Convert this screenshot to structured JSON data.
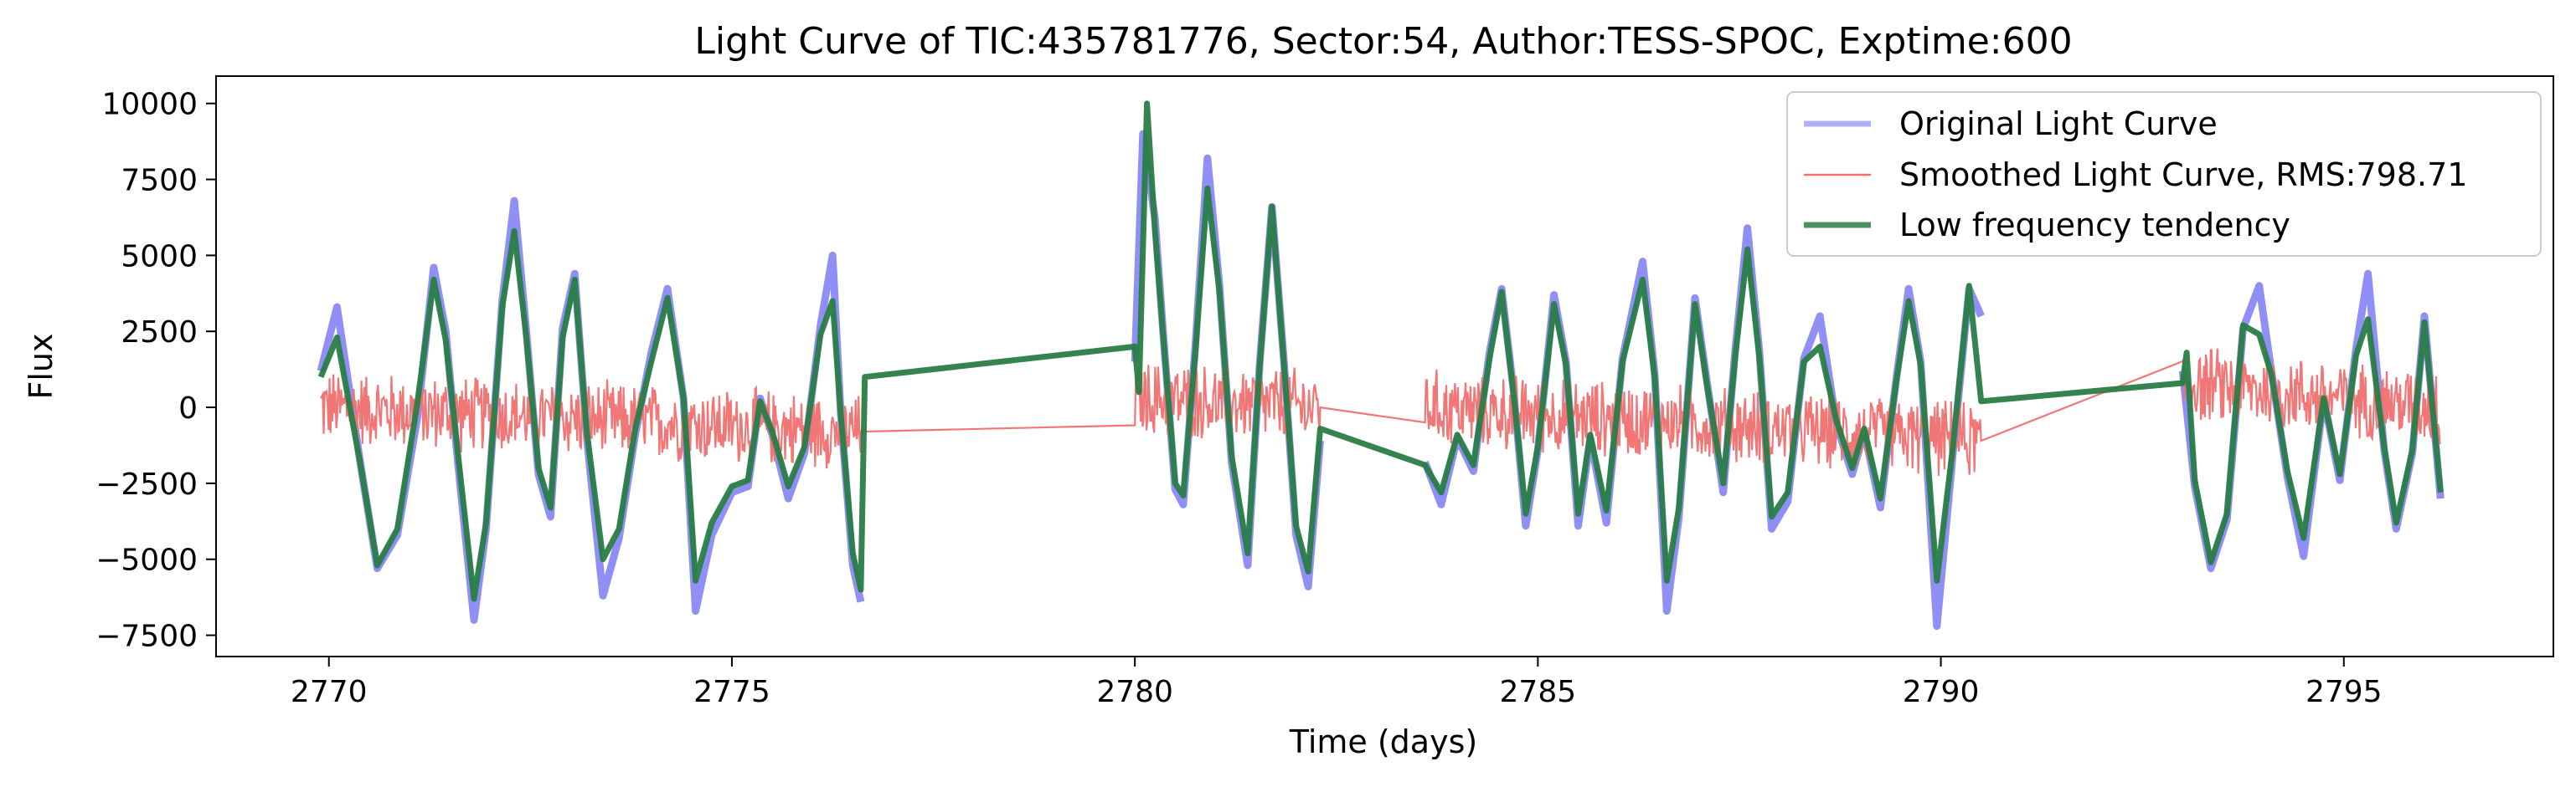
{
  "chart_data": {
    "type": "line",
    "title": "Light Curve of TIC:435781776, Sector:54, Author:TESS-SPOC, Exptime:600",
    "xlabel": "Time (days)",
    "ylabel": "Flux",
    "xlim": [
      2768.6,
      2797.6
    ],
    "ylim": [
      -8200,
      10900
    ],
    "xticks": [
      2770,
      2775,
      2780,
      2785,
      2790,
      2795
    ],
    "xtick_labels": [
      "2770",
      "2775",
      "2780",
      "2785",
      "2790",
      "2795"
    ],
    "yticks": [
      -7500,
      -5000,
      -2500,
      0,
      2500,
      5000,
      7500,
      10000
    ],
    "ytick_labels": [
      "−7500",
      "−5000",
      "−2500",
      "0",
      "2500",
      "5000",
      "7500",
      "10000"
    ],
    "grid": false,
    "legend_position": "top-right",
    "segments": [
      [
        2769.9,
        2776.6
      ],
      [
        2780.0,
        2782.3
      ],
      [
        2783.6,
        2790.5
      ],
      [
        2793.0,
        2796.2
      ]
    ],
    "series": [
      {
        "name": "Original Light Curve",
        "color": "#7b7bf5",
        "style": "thick translucent line",
        "points": [
          [
            2769.9,
            1200
          ],
          [
            2770.1,
            3300
          ],
          [
            2770.4,
            -2000
          ],
          [
            2770.6,
            -5300
          ],
          [
            2770.85,
            -4200
          ],
          [
            2771.1,
            -300
          ],
          [
            2771.3,
            4600
          ],
          [
            2771.45,
            2500
          ],
          [
            2771.6,
            -1800
          ],
          [
            2771.8,
            -7000
          ],
          [
            2771.95,
            -4000
          ],
          [
            2772.15,
            3500
          ],
          [
            2772.3,
            6800
          ],
          [
            2772.45,
            2500
          ],
          [
            2772.6,
            -2200
          ],
          [
            2772.75,
            -3600
          ],
          [
            2772.9,
            2600
          ],
          [
            2773.05,
            4400
          ],
          [
            2773.2,
            -1000
          ],
          [
            2773.4,
            -6200
          ],
          [
            2773.6,
            -4300
          ],
          [
            2773.8,
            -900
          ],
          [
            2774.0,
            1800
          ],
          [
            2774.2,
            3900
          ],
          [
            2774.4,
            300
          ],
          [
            2774.55,
            -6700
          ],
          [
            2774.75,
            -4200
          ],
          [
            2775.0,
            -2800
          ],
          [
            2775.2,
            -2600
          ],
          [
            2775.35,
            300
          ],
          [
            2775.5,
            -900
          ],
          [
            2775.7,
            -3000
          ],
          [
            2775.9,
            -1500
          ],
          [
            2776.1,
            2700
          ],
          [
            2776.25,
            5000
          ],
          [
            2776.35,
            -200
          ],
          [
            2776.5,
            -5200
          ],
          [
            2776.6,
            -6400
          ],
          [
            2780.0,
            1500
          ],
          [
            2780.1,
            9000
          ],
          [
            2780.25,
            6200
          ],
          [
            2780.35,
            2500
          ],
          [
            2780.5,
            -2700
          ],
          [
            2780.6,
            -3200
          ],
          [
            2780.75,
            2000
          ],
          [
            2780.9,
            8200
          ],
          [
            2781.05,
            4000
          ],
          [
            2781.2,
            -1800
          ],
          [
            2781.4,
            -5200
          ],
          [
            2781.55,
            1500
          ],
          [
            2781.7,
            6600
          ],
          [
            2781.85,
            1500
          ],
          [
            2782.0,
            -4200
          ],
          [
            2782.15,
            -5900
          ],
          [
            2782.3,
            -1100
          ],
          [
            2783.6,
            -1800
          ],
          [
            2783.8,
            -3200
          ],
          [
            2784.0,
            -1000
          ],
          [
            2784.2,
            -2100
          ],
          [
            2784.4,
            1800
          ],
          [
            2784.55,
            3900
          ],
          [
            2784.7,
            500
          ],
          [
            2784.85,
            -3900
          ],
          [
            2785.0,
            -1400
          ],
          [
            2785.2,
            3700
          ],
          [
            2785.35,
            1500
          ],
          [
            2785.5,
            -3900
          ],
          [
            2785.65,
            -1000
          ],
          [
            2785.85,
            -3800
          ],
          [
            2786.05,
            1600
          ],
          [
            2786.3,
            4800
          ],
          [
            2786.45,
            1100
          ],
          [
            2786.6,
            -6700
          ],
          [
            2786.75,
            -3600
          ],
          [
            2786.95,
            3600
          ],
          [
            2787.1,
            800
          ],
          [
            2787.3,
            -2800
          ],
          [
            2787.45,
            1900
          ],
          [
            2787.6,
            5900
          ],
          [
            2787.75,
            1800
          ],
          [
            2787.9,
            -4000
          ],
          [
            2788.1,
            -3100
          ],
          [
            2788.3,
            1600
          ],
          [
            2788.5,
            3000
          ],
          [
            2788.7,
            -500
          ],
          [
            2788.9,
            -2200
          ],
          [
            2789.05,
            -800
          ],
          [
            2789.25,
            -3300
          ],
          [
            2789.45,
            1000
          ],
          [
            2789.6,
            3900
          ],
          [
            2789.75,
            1500
          ],
          [
            2789.95,
            -7200
          ],
          [
            2790.15,
            -1500
          ],
          [
            2790.35,
            3900
          ],
          [
            2790.5,
            3000
          ],
          [
            2793.0,
            1200
          ],
          [
            2793.15,
            -2600
          ],
          [
            2793.35,
            -5300
          ],
          [
            2793.55,
            -3700
          ],
          [
            2793.75,
            2600
          ],
          [
            2793.95,
            4000
          ],
          [
            2794.1,
            1200
          ],
          [
            2794.3,
            -2300
          ],
          [
            2794.5,
            -4900
          ],
          [
            2794.75,
            300
          ],
          [
            2794.95,
            -2400
          ],
          [
            2795.15,
            1900
          ],
          [
            2795.3,
            4400
          ],
          [
            2795.5,
            -1400
          ],
          [
            2795.65,
            -4000
          ],
          [
            2795.85,
            -1500
          ],
          [
            2796.0,
            3000
          ],
          [
            2796.2,
            -3000
          ]
        ]
      },
      {
        "name": "Smoothed Light Curve, RMS:798.71",
        "color": "#f07070",
        "style": "thin noisy line around zero",
        "noise_amplitude": 1400,
        "points": [
          [
            2769.9,
            0
          ],
          [
            2776.6,
            -800
          ],
          [
            2780.0,
            300
          ],
          [
            2782.3,
            0
          ],
          [
            2783.6,
            0
          ],
          [
            2790.5,
            -1100
          ],
          [
            2793.0,
            800
          ],
          [
            2796.2,
            0
          ]
        ]
      },
      {
        "name": "Low frequency tendency",
        "color": "#2a7d46",
        "style": "thick line",
        "points": [
          [
            2769.9,
            1000
          ],
          [
            2770.1,
            2300
          ],
          [
            2770.4,
            -2000
          ],
          [
            2770.6,
            -5200
          ],
          [
            2770.85,
            -4000
          ],
          [
            2771.1,
            200
          ],
          [
            2771.3,
            4200
          ],
          [
            2771.45,
            2200
          ],
          [
            2771.6,
            -1500
          ],
          [
            2771.8,
            -6300
          ],
          [
            2771.95,
            -3800
          ],
          [
            2772.15,
            3300
          ],
          [
            2772.3,
            5800
          ],
          [
            2772.45,
            2300
          ],
          [
            2772.6,
            -2000
          ],
          [
            2772.75,
            -3300
          ],
          [
            2772.9,
            2300
          ],
          [
            2773.05,
            4200
          ],
          [
            2773.2,
            -800
          ],
          [
            2773.4,
            -5000
          ],
          [
            2773.6,
            -4000
          ],
          [
            2773.8,
            -700
          ],
          [
            2774.0,
            1500
          ],
          [
            2774.2,
            3600
          ],
          [
            2774.4,
            300
          ],
          [
            2774.55,
            -5700
          ],
          [
            2774.75,
            -3800
          ],
          [
            2775.0,
            -2600
          ],
          [
            2775.2,
            -2400
          ],
          [
            2775.35,
            200
          ],
          [
            2775.5,
            -800
          ],
          [
            2775.7,
            -2600
          ],
          [
            2775.9,
            -1300
          ],
          [
            2776.1,
            2400
          ],
          [
            2776.25,
            3500
          ],
          [
            2776.35,
            -200
          ],
          [
            2776.5,
            -4800
          ],
          [
            2776.6,
            -6000
          ],
          [
            2776.65,
            1000
          ],
          [
            2780.0,
            2000
          ],
          [
            2780.05,
            500
          ],
          [
            2780.15,
            10000
          ],
          [
            2780.25,
            5800
          ],
          [
            2780.35,
            2400
          ],
          [
            2780.5,
            -2500
          ],
          [
            2780.6,
            -2900
          ],
          [
            2780.75,
            1800
          ],
          [
            2780.9,
            7200
          ],
          [
            2781.05,
            3800
          ],
          [
            2781.2,
            -1600
          ],
          [
            2781.4,
            -4800
          ],
          [
            2781.55,
            1400
          ],
          [
            2781.7,
            6600
          ],
          [
            2781.85,
            1400
          ],
          [
            2782.0,
            -3900
          ],
          [
            2782.15,
            -5400
          ],
          [
            2782.3,
            -700
          ],
          [
            2783.6,
            -1900
          ],
          [
            2783.8,
            -2800
          ],
          [
            2784.0,
            -900
          ],
          [
            2784.2,
            -1900
          ],
          [
            2784.4,
            1600
          ],
          [
            2784.55,
            3800
          ],
          [
            2784.7,
            400
          ],
          [
            2784.85,
            -3500
          ],
          [
            2785.0,
            -1300
          ],
          [
            2785.2,
            3400
          ],
          [
            2785.35,
            1400
          ],
          [
            2785.5,
            -3500
          ],
          [
            2785.65,
            -900
          ],
          [
            2785.85,
            -3400
          ],
          [
            2786.05,
            1500
          ],
          [
            2786.3,
            4200
          ],
          [
            2786.45,
            1000
          ],
          [
            2786.6,
            -5700
          ],
          [
            2786.75,
            -3300
          ],
          [
            2786.95,
            3400
          ],
          [
            2787.1,
            700
          ],
          [
            2787.3,
            -2500
          ],
          [
            2787.45,
            1700
          ],
          [
            2787.6,
            5200
          ],
          [
            2787.75,
            1600
          ],
          [
            2787.9,
            -3600
          ],
          [
            2788.1,
            -2800
          ],
          [
            2788.3,
            1500
          ],
          [
            2788.5,
            2000
          ],
          [
            2788.7,
            -400
          ],
          [
            2788.9,
            -2000
          ],
          [
            2789.05,
            -700
          ],
          [
            2789.25,
            -3000
          ],
          [
            2789.45,
            900
          ],
          [
            2789.6,
            3500
          ],
          [
            2789.75,
            1400
          ],
          [
            2789.95,
            -5700
          ],
          [
            2790.15,
            -1300
          ],
          [
            2790.35,
            4000
          ],
          [
            2790.5,
            200
          ],
          [
            2793.0,
            800
          ],
          [
            2793.05,
            1800
          ],
          [
            2793.15,
            -2400
          ],
          [
            2793.35,
            -5100
          ],
          [
            2793.55,
            -3500
          ],
          [
            2793.75,
            2700
          ],
          [
            2793.95,
            2400
          ],
          [
            2794.1,
            1100
          ],
          [
            2794.3,
            -2100
          ],
          [
            2794.5,
            -4300
          ],
          [
            2794.75,
            300
          ],
          [
            2794.95,
            -2200
          ],
          [
            2795.15,
            1700
          ],
          [
            2795.3,
            2900
          ],
          [
            2795.5,
            -1300
          ],
          [
            2795.65,
            -3800
          ],
          [
            2795.85,
            -1400
          ],
          [
            2796.0,
            2800
          ],
          [
            2796.2,
            -2800
          ]
        ]
      }
    ]
  }
}
